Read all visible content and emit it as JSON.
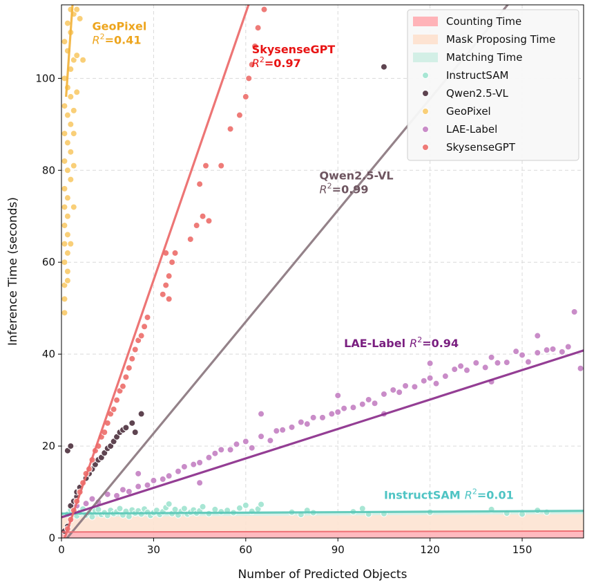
{
  "chart_data": {
    "type": "scatter",
    "xlabel": "Number of Predicted Objects",
    "ylabel": "Inference Time (seconds)",
    "xlim": [
      0,
      170
    ],
    "ylim": [
      0,
      116
    ],
    "xticks": [
      0,
      30,
      60,
      90,
      120,
      150
    ],
    "yticks": [
      0,
      20,
      40,
      60,
      80,
      100
    ],
    "grid": true,
    "legend_position": "top-right",
    "areas": [
      {
        "name": "Counting Time",
        "color": "#ffb3b8",
        "x": [
          0,
          170
        ],
        "y_low": [
          0,
          0
        ],
        "y_high": [
          1.3,
          1.5
        ]
      },
      {
        "name": "Mask Proposing Time",
        "color": "#fde3d2",
        "x": [
          0,
          170
        ],
        "y_low": [
          1.3,
          1.5
        ],
        "y_high": [
          4.6,
          5.2
        ]
      },
      {
        "name": "Matching Time",
        "color": "#d3efe6",
        "x": [
          0,
          170
        ],
        "y_low": [
          4.6,
          5.2
        ],
        "y_high": [
          5.3,
          5.9
        ]
      }
    ],
    "series": [
      {
        "name": "InstructSAM",
        "color": "#a8e6d4",
        "line_color": "#5cc8b8",
        "fit": {
          "x": [
            0,
            170
          ],
          "y": [
            5.3,
            5.9
          ]
        },
        "annotation": {
          "label": "InstructSAM",
          "r2": "=0.01",
          "x": 105,
          "y": 8.5,
          "color": "#4fc4c4"
        },
        "points": [
          [
            2,
            5.2
          ],
          [
            3,
            6.1
          ],
          [
            5,
            4.8
          ],
          [
            6,
            5.6
          ],
          [
            7,
            6.3
          ],
          [
            8,
            5.0
          ],
          [
            9,
            5.4
          ],
          [
            10,
            4.6
          ],
          [
            11,
            5.9
          ],
          [
            12,
            6.2
          ],
          [
            13,
            5.1
          ],
          [
            14,
            5.5
          ],
          [
            15,
            4.9
          ],
          [
            16,
            6.0
          ],
          [
            17,
            5.3
          ],
          [
            18,
            5.7
          ],
          [
            19,
            6.4
          ],
          [
            20,
            5.0
          ],
          [
            21,
            5.8
          ],
          [
            22,
            4.7
          ],
          [
            23,
            6.1
          ],
          [
            24,
            5.4
          ],
          [
            25,
            5.9
          ],
          [
            26,
            5.2
          ],
          [
            27,
            6.3
          ],
          [
            28,
            5.6
          ],
          [
            29,
            4.9
          ],
          [
            30,
            5.5
          ],
          [
            31,
            6.0
          ],
          [
            32,
            5.1
          ],
          [
            33,
            5.7
          ],
          [
            34,
            6.6
          ],
          [
            35,
            7.4
          ],
          [
            36,
            5.3
          ],
          [
            37,
            6.2
          ],
          [
            38,
            5.0
          ],
          [
            39,
            5.8
          ],
          [
            40,
            6.4
          ],
          [
            41,
            5.2
          ],
          [
            42,
            5.6
          ],
          [
            43,
            6.1
          ],
          [
            44,
            5.4
          ],
          [
            45,
            5.9
          ],
          [
            46,
            6.8
          ],
          [
            48,
            5.3
          ],
          [
            50,
            6.2
          ],
          [
            52,
            5.7
          ],
          [
            54,
            6.0
          ],
          [
            56,
            5.5
          ],
          [
            58,
            6.5
          ],
          [
            60,
            7.1
          ],
          [
            62,
            5.8
          ],
          [
            64,
            6.3
          ],
          [
            65,
            7.3
          ],
          [
            75,
            5.6
          ],
          [
            78,
            5.1
          ],
          [
            80,
            6.0
          ],
          [
            82,
            5.5
          ],
          [
            95,
            5.7
          ],
          [
            98,
            6.4
          ],
          [
            100,
            5.2
          ],
          [
            105,
            5.3
          ],
          [
            120,
            5.6
          ],
          [
            140,
            6.2
          ],
          [
            145,
            5.4
          ],
          [
            150,
            5.2
          ],
          [
            155,
            6.0
          ],
          [
            158,
            5.6
          ]
        ]
      },
      {
        "name": "Qwen2.5-VL",
        "color": "#5e4450",
        "line_color": "#8c7880",
        "fit": {
          "x": [
            0,
            170
          ],
          "y": [
            -1.5,
            136
          ]
        },
        "annotation": {
          "label": "Qwen2.5-VL",
          "r2": "=0.99",
          "x": 84,
          "y": 78,
          "color": "#6e5560"
        },
        "points": [
          [
            1,
            1.5
          ],
          [
            2,
            2.5
          ],
          [
            2,
            19
          ],
          [
            3,
            20
          ],
          [
            3,
            7
          ],
          [
            4,
            8
          ],
          [
            5,
            9
          ],
          [
            5,
            10
          ],
          [
            6,
            10.5
          ],
          [
            6,
            11
          ],
          [
            7,
            12
          ],
          [
            8,
            13
          ],
          [
            9,
            14
          ],
          [
            10,
            15
          ],
          [
            11,
            16
          ],
          [
            12,
            17
          ],
          [
            13,
            17.5
          ],
          [
            14,
            18.5
          ],
          [
            15,
            19.5
          ],
          [
            16,
            20
          ],
          [
            17,
            21
          ],
          [
            18,
            22
          ],
          [
            19,
            23
          ],
          [
            20,
            23.5
          ],
          [
            21,
            24
          ],
          [
            23,
            25
          ],
          [
            24,
            23
          ],
          [
            26,
            27
          ],
          [
            105,
            102.5
          ]
        ]
      },
      {
        "name": "GeoPixel",
        "color": "#f9cf78",
        "line_color": "#f2b43c",
        "fit": {
          "x": [
            1.5,
            3.6
          ],
          "y": [
            96,
            116
          ]
        },
        "annotation": {
          "label": "GeoPixel",
          "r2": "=0.41",
          "x": 10,
          "y": 110.5,
          "color": "#eda51e"
        },
        "points": [
          [
            1,
            49
          ],
          [
            1,
            52
          ],
          [
            1,
            55
          ],
          [
            2,
            58
          ],
          [
            1,
            60
          ],
          [
            2,
            62
          ],
          [
            1,
            64
          ],
          [
            2,
            66
          ],
          [
            1,
            68
          ],
          [
            2,
            70
          ],
          [
            1,
            72
          ],
          [
            2,
            74
          ],
          [
            1,
            76
          ],
          [
            3,
            78
          ],
          [
            2,
            80
          ],
          [
            1,
            82
          ],
          [
            3,
            84
          ],
          [
            2,
            86
          ],
          [
            1,
            88
          ],
          [
            3,
            90
          ],
          [
            2,
            92
          ],
          [
            1,
            94
          ],
          [
            3,
            96
          ],
          [
            2,
            98
          ],
          [
            1,
            100
          ],
          [
            3,
            102
          ],
          [
            4,
            104
          ],
          [
            2,
            106
          ],
          [
            1,
            108
          ],
          [
            3,
            110
          ],
          [
            2,
            112
          ],
          [
            4,
            114
          ],
          [
            3,
            115
          ],
          [
            5,
            115
          ],
          [
            6,
            113
          ],
          [
            5,
            105
          ],
          [
            7,
            104
          ],
          [
            5,
            97
          ],
          [
            4,
            93
          ],
          [
            4,
            88
          ],
          [
            4,
            81
          ],
          [
            4,
            72
          ],
          [
            3,
            64
          ],
          [
            2,
            56
          ]
        ]
      },
      {
        "name": "LAE-Label",
        "color": "#c98cc8",
        "line_color": "#8b2e8c",
        "fit": {
          "x": [
            0,
            170
          ],
          "y": [
            4.5,
            40.8
          ]
        },
        "annotation": {
          "label": "LAE-Label",
          "r2": "=0.94",
          "x": 92,
          "y": 41.5,
          "color": "#7a1f80"
        },
        "points": [
          [
            5,
            7
          ],
          [
            8,
            7.5
          ],
          [
            10,
            8.5
          ],
          [
            12,
            7.8
          ],
          [
            15,
            9.5
          ],
          [
            18,
            9.2
          ],
          [
            20,
            10.5
          ],
          [
            22,
            10.1
          ],
          [
            25,
            11.2
          ],
          [
            28,
            11.5
          ],
          [
            30,
            12.5
          ],
          [
            33,
            12.8
          ],
          [
            35,
            13.5
          ],
          [
            38,
            14.5
          ],
          [
            40,
            15.5
          ],
          [
            43,
            16
          ],
          [
            45,
            16.4
          ],
          [
            48,
            17.5
          ],
          [
            50,
            18.4
          ],
          [
            52,
            19.2
          ],
          [
            55,
            19.2
          ],
          [
            57,
            20.4
          ],
          [
            60,
            21
          ],
          [
            62,
            19.6
          ],
          [
            65,
            22.1
          ],
          [
            68,
            21.2
          ],
          [
            70,
            23.3
          ],
          [
            72,
            23.5
          ],
          [
            75,
            24.1
          ],
          [
            78,
            25.2
          ],
          [
            80,
            24.8
          ],
          [
            82,
            26.2
          ],
          [
            85,
            26.2
          ],
          [
            88,
            27
          ],
          [
            90,
            27.4
          ],
          [
            92,
            28.2
          ],
          [
            95,
            28.4
          ],
          [
            98,
            29.1
          ],
          [
            100,
            30.1
          ],
          [
            102,
            29.3
          ],
          [
            105,
            31.3
          ],
          [
            108,
            32.2
          ],
          [
            110,
            31.7
          ],
          [
            112,
            33.1
          ],
          [
            115,
            32.9
          ],
          [
            118,
            34.2
          ],
          [
            120,
            34.8
          ],
          [
            122,
            33.6
          ],
          [
            125,
            35.2
          ],
          [
            128,
            36.7
          ],
          [
            130,
            37.4
          ],
          [
            132,
            36.5
          ],
          [
            135,
            38.1
          ],
          [
            138,
            37.1
          ],
          [
            140,
            39.3
          ],
          [
            142,
            38.1
          ],
          [
            145,
            38.2
          ],
          [
            148,
            40.6
          ],
          [
            150,
            39.8
          ],
          [
            152,
            38.3
          ],
          [
            155,
            40.3
          ],
          [
            158,
            40.9
          ],
          [
            160,
            41.1
          ],
          [
            163,
            40.5
          ],
          [
            165,
            41.6
          ],
          [
            167,
            49.2
          ],
          [
            169,
            36.9
          ],
          [
            25,
            14
          ],
          [
            45,
            12
          ],
          [
            65,
            27
          ],
          [
            90,
            31
          ],
          [
            105,
            27
          ],
          [
            120,
            38
          ],
          [
            140,
            34
          ],
          [
            155,
            44
          ]
        ]
      },
      {
        "name": "SkysenseGPT",
        "color": "#ee7b78",
        "line_color": "#ec6a6a",
        "fit": {
          "x": [
            0,
            64
          ],
          "y": [
            -2,
            122
          ]
        },
        "annotation": {
          "label": "SkysenseGPT",
          "r2": "=0.97",
          "x": 62,
          "y": 105.5,
          "color": "#e81414"
        },
        "points": [
          [
            2,
            2
          ],
          [
            3,
            4
          ],
          [
            4,
            6
          ],
          [
            5,
            8
          ],
          [
            6,
            10
          ],
          [
            7,
            12
          ],
          [
            8,
            14
          ],
          [
            9,
            15
          ],
          [
            10,
            17
          ],
          [
            11,
            19
          ],
          [
            12,
            20
          ],
          [
            13,
            22
          ],
          [
            14,
            23
          ],
          [
            15,
            25
          ],
          [
            16,
            27
          ],
          [
            17,
            28
          ],
          [
            18,
            30
          ],
          [
            19,
            32
          ],
          [
            20,
            33
          ],
          [
            21,
            35
          ],
          [
            22,
            37
          ],
          [
            23,
            39
          ],
          [
            24,
            41
          ],
          [
            25,
            43
          ],
          [
            26,
            44
          ],
          [
            27,
            46
          ],
          [
            28,
            48
          ],
          [
            33,
            53
          ],
          [
            34,
            55
          ],
          [
            35,
            57
          ],
          [
            36,
            60
          ],
          [
            37,
            62
          ],
          [
            42,
            65
          ],
          [
            44,
            68
          ],
          [
            46,
            70
          ],
          [
            45,
            77
          ],
          [
            47,
            81
          ],
          [
            52,
            81
          ],
          [
            55,
            89
          ],
          [
            58,
            92
          ],
          [
            60,
            96
          ],
          [
            61,
            100
          ],
          [
            62,
            103
          ],
          [
            63,
            107
          ],
          [
            64,
            111
          ],
          [
            66,
            115
          ],
          [
            34,
            62
          ],
          [
            35,
            52
          ],
          [
            48,
            69
          ]
        ]
      }
    ]
  }
}
